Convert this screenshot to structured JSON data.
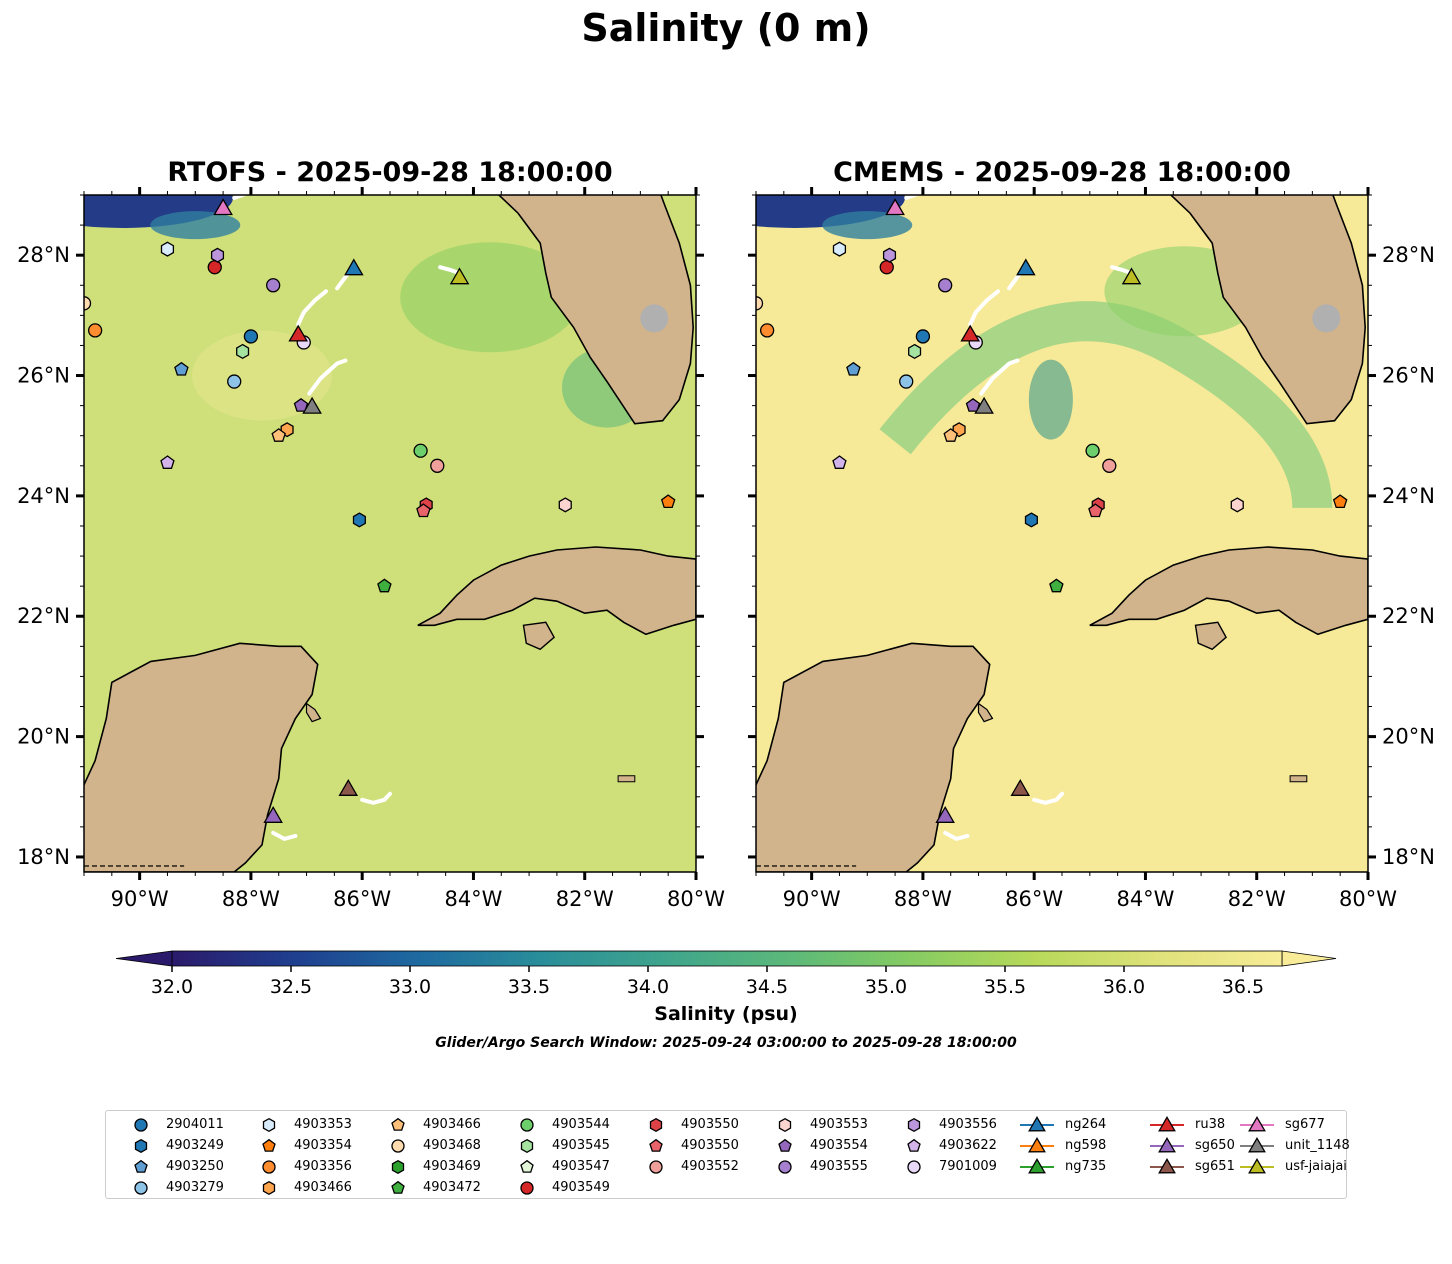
{
  "figure": {
    "title": "Salinity (0 m)",
    "panels": [
      {
        "title": "RTOFS - 2025-09-28 18:00:00",
        "model": "RTOFS"
      },
      {
        "title": "CMEMS - 2025-09-28 18:00:00",
        "model": "CMEMS"
      }
    ],
    "lon_ticks": [
      "90°W",
      "88°W",
      "86°W",
      "84°W",
      "82°W",
      "80°W"
    ],
    "lat_ticks": [
      "28°N",
      "26°N",
      "24°N",
      "22°N",
      "20°N",
      "18°N"
    ],
    "lon_range": [
      -91,
      -80
    ],
    "lat_range": [
      17.75,
      29
    ]
  },
  "colorbar": {
    "ticks": [
      "32.0",
      "32.5",
      "33.0",
      "33.5",
      "34.0",
      "34.5",
      "35.0",
      "35.5",
      "36.0",
      "36.5"
    ],
    "label": "Salinity (psu)",
    "range": [
      32.0,
      36.5
    ],
    "colors": [
      "#2b1a6b",
      "#1f3f8f",
      "#1e6aa0",
      "#2a8e9a",
      "#3fa48c",
      "#5cb97a",
      "#86cc62",
      "#b8d95a",
      "#dfe27a",
      "#f8ec98"
    ]
  },
  "search_window": "Glider/Argo Search Window: 2025-09-24 03:00:00 to 2025-09-28 18:00:00",
  "colors": {
    "land": "#d2b48c",
    "shallow": "#9fc5e8",
    "ocean_rtofs": "#cfe07a",
    "ocean_cmems": "#f6ea98",
    "track": "#ffffff"
  },
  "legend": [
    {
      "label": "2904011",
      "marker": "circle",
      "color": "#1f77b4"
    },
    {
      "label": "4903249",
      "marker": "hexagon",
      "color": "#1f77b4"
    },
    {
      "label": "4903250",
      "marker": "pentagon",
      "color": "#5f9fd3"
    },
    {
      "label": "4903279",
      "marker": "circle",
      "color": "#8ec3e8"
    },
    {
      "label": "4903353",
      "marker": "hexagon",
      "color": "#d8ecfb"
    },
    {
      "label": "4903354",
      "marker": "pentagon",
      "color": "#ff7f0e"
    },
    {
      "label": "4903356",
      "marker": "circle",
      "color": "#ff8c2e"
    },
    {
      "label": "4903466",
      "marker": "hexagon",
      "color": "#ffa54d"
    },
    {
      "label": "4903466",
      "marker": "pentagon",
      "color": "#ffc07a"
    },
    {
      "label": "4903468",
      "marker": "circle",
      "color": "#ffdbb0"
    },
    {
      "label": "4903469",
      "marker": "hexagon",
      "color": "#2ca02c"
    },
    {
      "label": "4903472",
      "marker": "pentagon",
      "color": "#3fb03f"
    },
    {
      "label": "4903544",
      "marker": "circle",
      "color": "#6ccf6c"
    },
    {
      "label": "4903545",
      "marker": "hexagon",
      "color": "#a4e3a0"
    },
    {
      "label": "4903547",
      "marker": "pentagon",
      "color": "#e3f7d8"
    },
    {
      "label": "4903549",
      "marker": "circle",
      "color": "#d62728"
    },
    {
      "label": "4903550",
      "marker": "hexagon",
      "color": "#dc4248"
    },
    {
      "label": "4903550",
      "marker": "pentagon",
      "color": "#e8646a"
    },
    {
      "label": "4903552",
      "marker": "circle",
      "color": "#f0a09a"
    },
    {
      "label": "4903553",
      "marker": "hexagon",
      "color": "#fcd4cf"
    },
    {
      "label": "4903554",
      "marker": "pentagon",
      "color": "#9467bd"
    },
    {
      "label": "4903555",
      "marker": "circle",
      "color": "#a77fcf"
    },
    {
      "label": "4903556",
      "marker": "hexagon",
      "color": "#bc96dc"
    },
    {
      "label": "4903622",
      "marker": "pentagon",
      "color": "#d2b3ea"
    },
    {
      "label": "7901009",
      "marker": "circle",
      "color": "#ead8f8"
    },
    {
      "label": "ng264",
      "marker": "triangle",
      "color": "#1f77b4"
    },
    {
      "label": "ng598",
      "marker": "triangle",
      "color": "#ff7f0e"
    },
    {
      "label": "ng735",
      "marker": "triangle",
      "color": "#2ca02c"
    },
    {
      "label": "ru38",
      "marker": "triangle",
      "color": "#d62728"
    },
    {
      "label": "sg650",
      "marker": "triangle",
      "color": "#9467bd"
    },
    {
      "label": "sg651",
      "marker": "triangle",
      "color": "#8c564b"
    },
    {
      "label": "sg677",
      "marker": "triangle",
      "color": "#e377c2"
    },
    {
      "label": "unit_1148",
      "marker": "triangle",
      "color": "#7f7f7f"
    },
    {
      "label": "usf-jaiajai",
      "marker": "triangle",
      "color": "#bcbd22"
    }
  ],
  "observations": [
    {
      "id": "2904011",
      "marker": "circle",
      "color": "#1f77b4",
      "lon": -88.0,
      "lat": 26.65
    },
    {
      "id": "4903249",
      "marker": "hexagon",
      "color": "#1f77b4",
      "lon": -86.05,
      "lat": 23.6
    },
    {
      "id": "4903250",
      "marker": "pentagon",
      "color": "#5f9fd3",
      "lon": -89.25,
      "lat": 26.1
    },
    {
      "id": "4903279",
      "marker": "circle",
      "color": "#8ec3e8",
      "lon": -88.3,
      "lat": 25.9
    },
    {
      "id": "4903353",
      "marker": "hexagon",
      "color": "#d8ecfb",
      "lon": -89.5,
      "lat": 28.1
    },
    {
      "id": "4903354",
      "marker": "pentagon",
      "color": "#ff7f0e",
      "lon": -80.5,
      "lat": 23.9
    },
    {
      "id": "4903356",
      "marker": "circle",
      "color": "#ff8c2e",
      "lon": -90.8,
      "lat": 26.75
    },
    {
      "id": "4903466",
      "marker": "hexagon",
      "color": "#ffa54d",
      "lon": -87.35,
      "lat": 25.1
    },
    {
      "id": "4903466",
      "marker": "pentagon",
      "color": "#ffc07a",
      "lon": -87.5,
      "lat": 25.0
    },
    {
      "id": "4903468",
      "marker": "circle",
      "color": "#ffdbb0",
      "lon": -91.0,
      "lat": 27.2
    },
    {
      "id": "4903472",
      "marker": "pentagon",
      "color": "#3fb03f",
      "lon": -85.6,
      "lat": 22.5
    },
    {
      "id": "4903544",
      "marker": "circle",
      "color": "#6ccf6c",
      "lon": -84.95,
      "lat": 24.75
    },
    {
      "id": "4903545",
      "marker": "hexagon",
      "color": "#a4e3a0",
      "lon": -88.15,
      "lat": 26.4
    },
    {
      "id": "4903549",
      "marker": "circle",
      "color": "#d62728",
      "lon": -88.65,
      "lat": 27.8
    },
    {
      "id": "4903550",
      "marker": "hexagon",
      "color": "#dc4248",
      "lon": -84.85,
      "lat": 23.85
    },
    {
      "id": "4903550",
      "marker": "pentagon",
      "color": "#e8646a",
      "lon": -84.9,
      "lat": 23.75
    },
    {
      "id": "4903552",
      "marker": "circle",
      "color": "#f0a09a",
      "lon": -84.65,
      "lat": 24.5
    },
    {
      "id": "4903553",
      "marker": "hexagon",
      "color": "#fcd4cf",
      "lon": -82.35,
      "lat": 23.85
    },
    {
      "id": "4903554",
      "marker": "pentagon",
      "color": "#9467bd",
      "lon": -87.1,
      "lat": 25.5
    },
    {
      "id": "4903555",
      "marker": "circle",
      "color": "#a77fcf",
      "lon": -87.6,
      "lat": 27.5
    },
    {
      "id": "4903556",
      "marker": "hexagon",
      "color": "#bc96dc",
      "lon": -88.6,
      "lat": 28.0
    },
    {
      "id": "4903622",
      "marker": "pentagon",
      "color": "#d2b3ea",
      "lon": -89.5,
      "lat": 24.55
    },
    {
      "id": "7901009",
      "marker": "circle",
      "color": "#ead8f8",
      "lon": -87.05,
      "lat": 26.55
    },
    {
      "id": "ng264",
      "marker": "triangle",
      "color": "#1f77b4",
      "lon": -86.15,
      "lat": 27.8
    },
    {
      "id": "ru38",
      "marker": "triangle",
      "color": "#d62728",
      "lon": -87.15,
      "lat": 26.7
    },
    {
      "id": "sg650",
      "marker": "triangle",
      "color": "#9467bd",
      "lon": -87.6,
      "lat": 18.7
    },
    {
      "id": "sg651",
      "marker": "triangle",
      "color": "#8c564b",
      "lon": -86.25,
      "lat": 19.15
    },
    {
      "id": "sg677",
      "marker": "triangle",
      "color": "#e377c2",
      "lon": -88.5,
      "lat": 28.8
    },
    {
      "id": "unit_1148",
      "marker": "triangle",
      "color": "#7f7f7f",
      "lon": -86.9,
      "lat": 25.5
    },
    {
      "id": "usf-jaiajai",
      "marker": "triangle",
      "color": "#bcbd22",
      "lon": -84.25,
      "lat": 27.65
    }
  ],
  "tracks": [
    [
      [
        -87.15,
        26.85
      ],
      [
        -87.05,
        27.05
      ],
      [
        -86.85,
        27.25
      ],
      [
        -86.65,
        27.4
      ]
    ],
    [
      [
        -86.45,
        27.45
      ],
      [
        -86.25,
        27.7
      ]
    ],
    [
      [
        -86.95,
        25.7
      ],
      [
        -86.75,
        25.95
      ],
      [
        -86.45,
        26.2
      ],
      [
        -86.3,
        26.25
      ]
    ],
    [
      [
        -84.6,
        27.8
      ],
      [
        -84.4,
        27.75
      ],
      [
        -84.25,
        27.7
      ]
    ],
    [
      [
        -86.0,
        18.95
      ],
      [
        -85.8,
        18.9
      ],
      [
        -85.6,
        18.95
      ],
      [
        -85.5,
        19.05
      ]
    ],
    [
      [
        -87.6,
        18.4
      ],
      [
        -87.4,
        18.3
      ],
      [
        -87.2,
        18.35
      ]
    ],
    [
      [
        -88.3,
        28.95
      ],
      [
        -88.0,
        29.05
      ]
    ]
  ]
}
